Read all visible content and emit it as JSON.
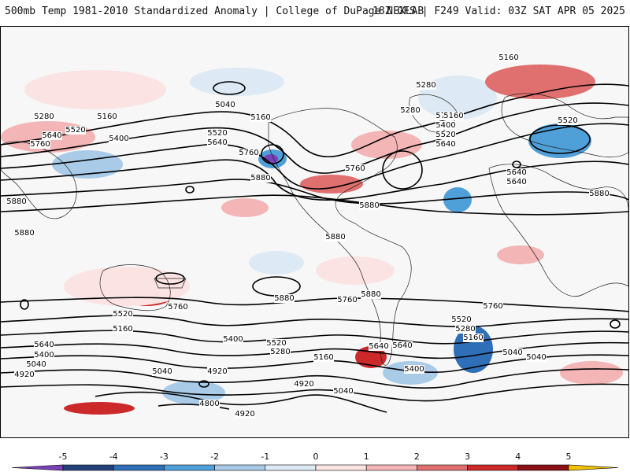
{
  "header": {
    "left_title": "500mb Temp 1981-2010 Standardized Anomaly | College of DuPage NEXLAB",
    "right_title": "18Z GFS | F249 Valid: 03Z SAT APR 05 2025"
  },
  "colors": {
    "contour": "#000000",
    "background": "#f7f7f7",
    "frame": "#000000"
  },
  "contour_labels": [
    "5160",
    "5280",
    "5160",
    "5520",
    "5400",
    "5640",
    "5760",
    "5040",
    "5160",
    "5280",
    "5520",
    "5640",
    "5400",
    "5760",
    "5160",
    "5280",
    "5400",
    "5520",
    "5640",
    "5520",
    "5640",
    "5760",
    "5880",
    "5880",
    "5880",
    "5880",
    "5880",
    "5880",
    "5760",
    "5880",
    "5760",
    "5760",
    "5520",
    "5640",
    "5400",
    "5160",
    "5040",
    "4920",
    "5040",
    "4920",
    "4800",
    "4920",
    "5640",
    "5400",
    "5280",
    "5160",
    "5520",
    "5040",
    "4920",
    "5040",
    "5400",
    "5640",
    "5520",
    "5280",
    "5160",
    "5040",
    "5760",
    "5640",
    "5880"
  ],
  "colorbar": {
    "ticks": [
      "-5",
      "-4",
      "-3",
      "-2",
      "-1",
      "0",
      "1",
      "2",
      "3",
      "4",
      "5"
    ],
    "bins": [
      {
        "color": "#7a40b8"
      },
      {
        "color": "#24407a"
      },
      {
        "color": "#2f6fb8"
      },
      {
        "color": "#4f9fd8"
      },
      {
        "color": "#a9cbe8"
      },
      {
        "color": "#dde9f4"
      },
      {
        "color": "#fbe3e3"
      },
      {
        "color": "#f3b5b5"
      },
      {
        "color": "#e07070"
      },
      {
        "color": "#cc2a2a"
      },
      {
        "color": "#8a0f16"
      },
      {
        "color": "#f2c200"
      }
    ]
  }
}
